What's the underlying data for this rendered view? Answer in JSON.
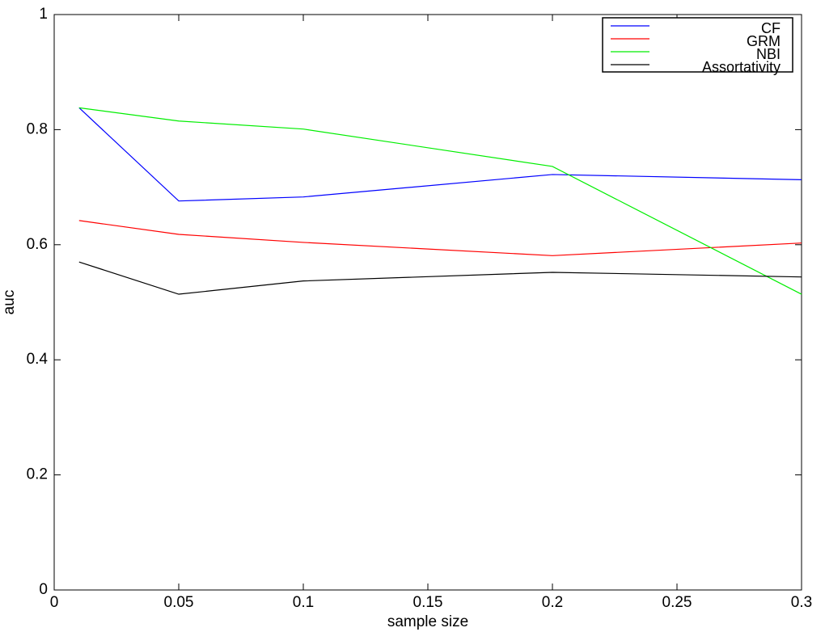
{
  "chart_data": {
    "type": "line",
    "x_label": "sample size",
    "y_label": "auc",
    "x": [
      0.01,
      0.05,
      0.1,
      0.2,
      0.3
    ],
    "series": [
      {
        "name": "CF",
        "color": "#0000ff",
        "values": [
          0.838,
          0.676,
          0.683,
          0.722,
          0.713
        ]
      },
      {
        "name": "GRM",
        "color": "#ff0000",
        "values": [
          0.642,
          0.618,
          0.604,
          0.581,
          0.603
        ]
      },
      {
        "name": "NBI",
        "color": "#00ee00",
        "values": [
          0.838,
          0.815,
          0.801,
          0.736,
          0.514
        ]
      },
      {
        "name": "Assortativity",
        "color": "#000000",
        "values": [
          0.57,
          0.514,
          0.537,
          0.552,
          0.544
        ]
      }
    ],
    "xlim": [
      0,
      0.3
    ],
    "xticks": [
      0,
      0.05,
      0.1,
      0.15,
      0.2,
      0.25,
      0.3
    ],
    "ylim": [
      0,
      1
    ],
    "yticks": [
      0,
      0.2,
      0.4,
      0.6,
      0.8,
      1
    ],
    "grid": false,
    "legend": "upper right"
  }
}
